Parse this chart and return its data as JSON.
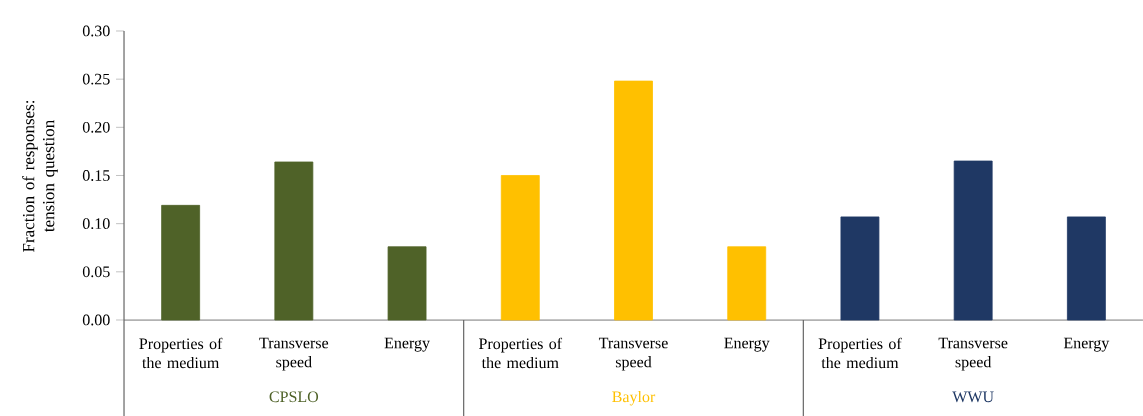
{
  "chart_data": {
    "type": "bar",
    "ylabel": "Fraction of responses: tension question",
    "categories": [
      "Properties of the medium",
      "Transverse speed",
      "Energy",
      "Properties of the medium",
      "Transverse speed",
      "Energy",
      "Properties of the medium",
      "Transverse speed",
      "Energy"
    ],
    "series": [
      {
        "name": "CPSLO",
        "color": "#4f6228",
        "values": [
          0.119,
          0.164,
          0.076,
          null,
          null,
          null,
          null,
          null,
          null
        ]
      },
      {
        "name": "Baylor",
        "color": "#ffc000",
        "values": [
          null,
          null,
          null,
          0.15,
          0.248,
          0.076,
          null,
          null,
          null
        ]
      },
      {
        "name": "WWU",
        "color": "#1f3864",
        "values": [
          null,
          null,
          null,
          null,
          null,
          null,
          0.107,
          0.165,
          0.107
        ]
      }
    ],
    "ylim": [
      0,
      0.3
    ],
    "yticks": [
      {
        "value": 0,
        "label": "0.00"
      },
      {
        "value": 0.05,
        "label": "0.05"
      },
      {
        "value": 0.1,
        "label": "0.10"
      },
      {
        "value": 0.15,
        "label": "0.15"
      },
      {
        "value": 0.2,
        "label": "0.20"
      },
      {
        "value": 0.25,
        "label": "0.25"
      },
      {
        "value": 0.3,
        "label": "0.30"
      }
    ]
  }
}
